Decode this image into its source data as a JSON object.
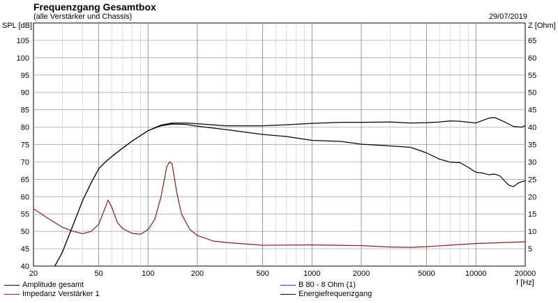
{
  "header": {
    "title": "Frequenzgang Gesamtbox",
    "subtitle": "(alle Verstärker und Chassis)",
    "date": "29/07/2019"
  },
  "chart_data": {
    "type": "line",
    "title": "Frequenzgang Gesamtbox",
    "subtitle": "(alle Verstärker und Chassis)",
    "xlabel": "f [Hz]",
    "ylabel": "SPL [dB]",
    "y2label": "Z [Ohm]",
    "xscale": "log",
    "xlim": [
      20,
      20000
    ],
    "ylim": [
      40,
      110
    ],
    "y2lim": [
      0,
      70
    ],
    "grid": true,
    "x_major_ticks": [
      20,
      50,
      100,
      200,
      500,
      1000,
      2000,
      5000,
      10000,
      20000
    ],
    "x_tick_labels": [
      "20",
      "50",
      "100",
      "200",
      "500",
      "1000",
      "2000",
      "5000",
      "10000",
      "20000"
    ],
    "x_minor_ticks": [
      30,
      40,
      60,
      70,
      80,
      90,
      300,
      400,
      600,
      700,
      800,
      900,
      3000,
      4000,
      6000,
      7000,
      8000,
      9000
    ],
    "y_ticks": [
      40,
      45,
      50,
      55,
      60,
      65,
      70,
      75,
      80,
      85,
      90,
      95,
      100,
      105
    ],
    "y_tick_labels": [
      "40",
      "45",
      "50",
      "55",
      "60",
      "65",
      "70",
      "75",
      "80",
      "85",
      "90",
      "95",
      "100",
      "105"
    ],
    "y2_ticks": [
      5,
      10,
      15,
      20,
      25,
      30,
      35,
      40,
      45,
      50,
      55,
      60,
      65
    ],
    "y2_tick_labels": [
      "5",
      "10",
      "15",
      "20",
      "25",
      "30",
      "35",
      "40",
      "45",
      "50",
      "55",
      "60",
      "65"
    ],
    "series": [
      {
        "name": "Amplitude gesamt",
        "color": "#000000",
        "axis": "left",
        "x": [
          27,
          30,
          35,
          40,
          45,
          50,
          55,
          60,
          70,
          80,
          100,
          120,
          140,
          170,
          200,
          300,
          500,
          700,
          1000,
          1500,
          2000,
          3000,
          4000,
          5000,
          6000,
          7000,
          8000,
          10000,
          12000,
          13000,
          15000,
          17000,
          19000,
          20000
        ],
        "y": [
          40,
          44,
          52,
          59,
          64,
          68,
          70,
          71.5,
          74,
          76,
          79,
          80.6,
          81.2,
          81.2,
          81.0,
          80.4,
          80.4,
          80.7,
          81.1,
          81.4,
          81.4,
          81.5,
          81.2,
          81.3,
          81.5,
          81.8,
          81.7,
          81.2,
          82.6,
          82.8,
          81.5,
          80.2,
          80.0,
          80.4
        ]
      },
      {
        "name": "Energiefrequenzgang",
        "color": "#000000",
        "axis": "left",
        "x": [
          27,
          30,
          35,
          40,
          45,
          50,
          55,
          60,
          70,
          80,
          100,
          120,
          140,
          170,
          200,
          300,
          500,
          700,
          1000,
          1500,
          2000,
          3000,
          4000,
          5000,
          6000,
          7000,
          8000,
          9000,
          10000,
          11000,
          12000,
          13000,
          14000,
          15000,
          16000,
          17000,
          18000,
          19000,
          20000
        ],
        "y": [
          40,
          44,
          52,
          59,
          64,
          68,
          70,
          71.5,
          74,
          76,
          79,
          80.4,
          80.9,
          80.8,
          80.3,
          79.3,
          77.9,
          77.3,
          76.2,
          75.9,
          75.1,
          74.6,
          74.2,
          72.6,
          70.8,
          69.9,
          69.8,
          68.4,
          67.0,
          66.8,
          66.3,
          66.5,
          66.0,
          64.5,
          63.2,
          62.9,
          63.8,
          64.3,
          64.6
        ]
      },
      {
        "name": "Impedanz Verstärker 1",
        "color": "#8b1a1a",
        "axis": "right",
        "x": [
          20,
          25,
          30,
          35,
          40,
          45,
          50,
          55,
          57,
          60,
          65,
          70,
          80,
          90,
          100,
          110,
          120,
          130,
          135,
          140,
          150,
          160,
          180,
          200,
          250,
          300,
          500,
          1000,
          2000,
          3000,
          4000,
          5000,
          10000,
          20000
        ],
        "y": [
          16.5,
          13.5,
          11.2,
          10.0,
          9.3,
          10.0,
          12.0,
          17.0,
          19.0,
          17.0,
          12.5,
          10.8,
          9.4,
          9.2,
          10.5,
          13.5,
          20.0,
          28.5,
          30.0,
          29.5,
          21.0,
          15.0,
          10.5,
          8.8,
          7.2,
          6.8,
          6.0,
          6.1,
          5.9,
          5.5,
          5.4,
          5.6,
          6.5,
          7.0
        ]
      }
    ],
    "legend": {
      "placement": "bottom",
      "items": [
        "Amplitude gesamt",
        "Impedanz Verstärker 1",
        "B 80 - 8 Ohm (1)",
        "Energiefrequenzgang"
      ],
      "colors": [
        "#000000",
        "#8b1a1a",
        "#2a2acc",
        "#000000"
      ]
    }
  }
}
